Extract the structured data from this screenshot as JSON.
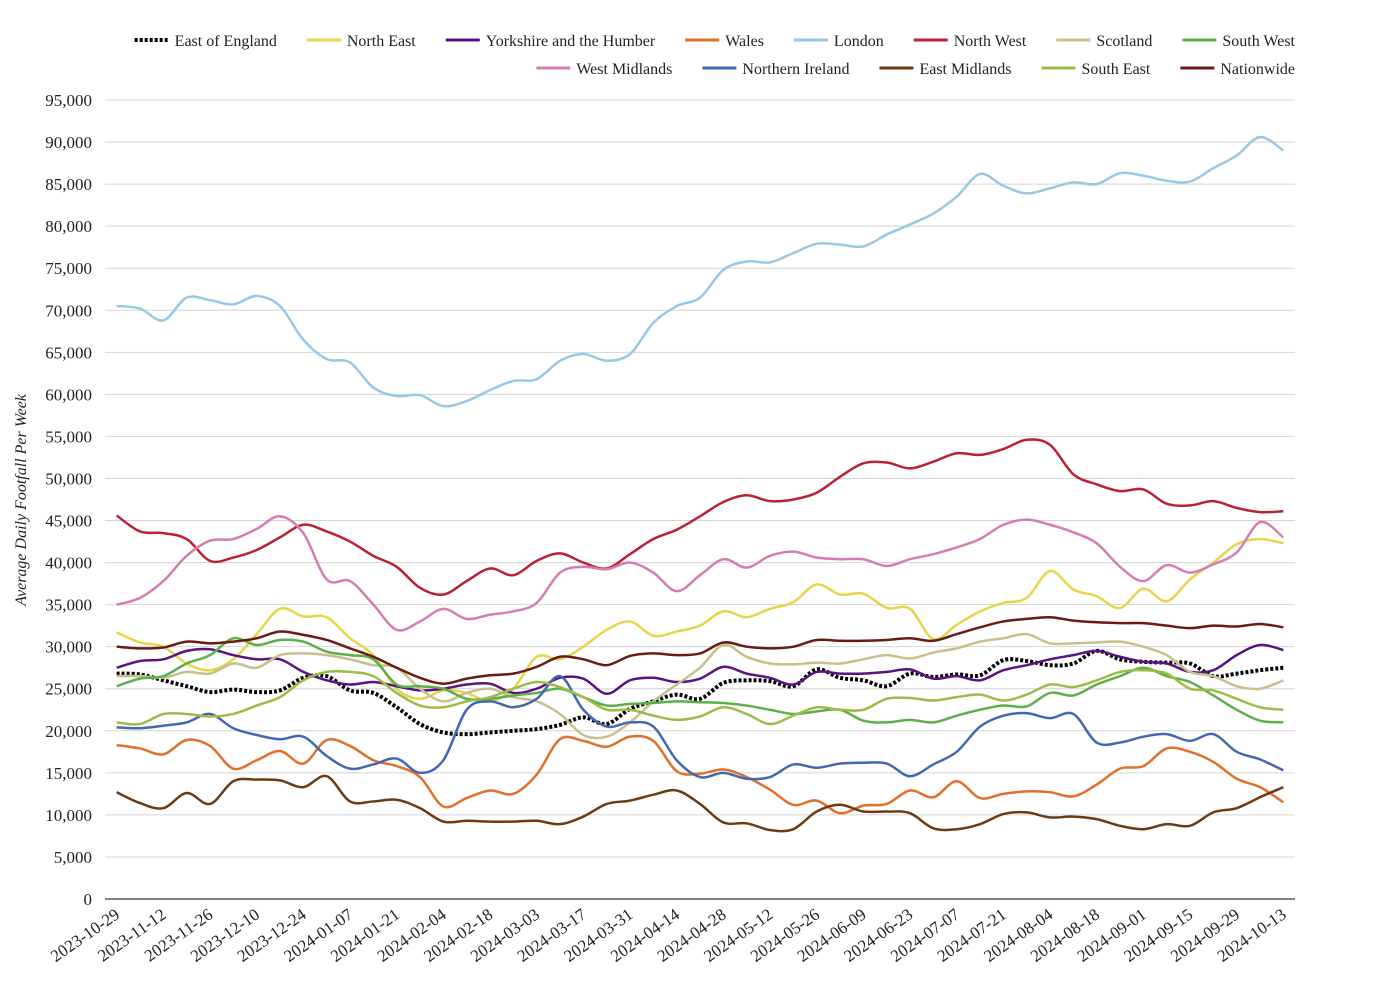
{
  "chart_data": {
    "type": "line",
    "y_label": "Average Daily Footfall Per Week",
    "categories": [
      "2023-10-29",
      null,
      "2023-11-12",
      null,
      "2023-11-26",
      null,
      "2023-12-10",
      null,
      "2023-12-24",
      null,
      "2024-01-07",
      null,
      "2024-01-21",
      null,
      "2024-02-04",
      null,
      "2024-02-18",
      null,
      "2024-03-03",
      null,
      "2024-03-17",
      null,
      "2024-03-31",
      null,
      "2024-04-14",
      null,
      "2024-04-28",
      null,
      "2024-05-12",
      null,
      "2024-05-26",
      null,
      "2024-06-09",
      null,
      "2024-06-23",
      null,
      "2024-07-07",
      null,
      "2024-07-21",
      null,
      "2024-08-04",
      null,
      "2024-08-18",
      null,
      "2024-09-01",
      null,
      "2024-09-15",
      null,
      "2024-09-29",
      null,
      "2024-10-13"
    ],
    "ylim": [
      0,
      95000
    ],
    "yticks": [
      0,
      {
        "value": 5000,
        "label": "5,000"
      },
      {
        "value": 10000,
        "label": "10,000"
      },
      {
        "value": 15000,
        "label": "15,000"
      },
      {
        "value": 20000,
        "label": "20,000"
      },
      {
        "value": 25000,
        "label": "25,000"
      },
      {
        "value": 30000,
        "label": "30,000"
      },
      {
        "value": 35000,
        "label": "35,000"
      },
      {
        "value": 40000,
        "label": "40,000"
      },
      {
        "value": 45000,
        "label": "45,000"
      },
      {
        "value": 50000,
        "label": "50,000"
      },
      {
        "value": 55000,
        "label": "55,000"
      },
      {
        "value": 60000,
        "label": "60,000"
      },
      {
        "value": 65000,
        "label": "65,000"
      },
      {
        "value": 70000,
        "label": "70,000"
      },
      {
        "value": 75000,
        "label": "75,000"
      },
      {
        "value": 80000,
        "label": "80,000"
      },
      {
        "value": 85000,
        "label": "85,000"
      },
      {
        "value": 90000,
        "label": "90,000"
      },
      {
        "value": 95000,
        "label": "95,000"
      }
    ],
    "grid": true,
    "legend": "top-right",
    "series": [
      {
        "name": "East of England",
        "color": "#000000",
        "line_style": "dotted",
        "values": [
          26800,
          26700,
          26000,
          25300,
          24600,
          24900,
          24600,
          24800,
          26300,
          26500,
          24800,
          24500,
          22800,
          20800,
          19800,
          19600,
          19800,
          20000,
          20200,
          20700,
          21600,
          20800,
          22600,
          23500,
          24300,
          23800,
          25700,
          26000,
          25900,
          25300,
          27300,
          26300,
          26000,
          25300,
          26800,
          26400,
          26700,
          26600,
          28400,
          28300,
          27800,
          28000,
          29500,
          28500,
          28200,
          28100,
          28000,
          26500,
          26800,
          27200,
          27500
        ]
      },
      {
        "name": "North East",
        "color": "#e8d44a",
        "values": [
          31700,
          30500,
          30000,
          28000,
          27200,
          28500,
          31500,
          34500,
          33600,
          33500,
          31000,
          29000,
          25000,
          23800,
          24800,
          24500,
          23500,
          25000,
          28800,
          28500,
          30000,
          32000,
          33000,
          31300,
          31800,
          32500,
          34200,
          33500,
          34500,
          35300,
          37400,
          36200,
          36300,
          34600,
          34500,
          30900,
          32600,
          34200,
          35200,
          35800,
          39000,
          36800,
          36000,
          34600,
          36900,
          35400,
          38000,
          40000,
          42200,
          42800,
          42300
        ]
      },
      {
        "name": "Yorkshire and the Humber",
        "color": "#5b1380",
        "values": [
          27500,
          28300,
          28500,
          29500,
          29700,
          29000,
          28500,
          28500,
          27000,
          26000,
          25500,
          25800,
          25300,
          24800,
          25000,
          25500,
          25600,
          24500,
          25000,
          26300,
          26200,
          24400,
          26000,
          26300,
          25800,
          26200,
          27600,
          26800,
          26300,
          25500,
          27000,
          26800,
          26800,
          27000,
          27300,
          26200,
          26500,
          26000,
          27200,
          27800,
          28500,
          29000,
          29500,
          28800,
          28200,
          28000,
          27000,
          27200,
          29000,
          30200,
          29600
        ]
      },
      {
        "name": "Wales",
        "color": "#e0702c",
        "values": [
          18300,
          17900,
          17200,
          18900,
          18200,
          15500,
          16500,
          17600,
          16100,
          18900,
          18200,
          16500,
          15800,
          14500,
          11000,
          12000,
          12900,
          12500,
          14800,
          19000,
          18800,
          18100,
          19300,
          18800,
          15200,
          14900,
          15400,
          14500,
          13000,
          11200,
          11700,
          10200,
          11100,
          11300,
          12900,
          12100,
          14000,
          12000,
          12500,
          12800,
          12700,
          12200,
          13600,
          15500,
          15800,
          17900,
          17500,
          16300,
          14300,
          13300,
          11500
        ]
      },
      {
        "name": "London",
        "color": "#98c8e4",
        "values": [
          70500,
          70200,
          68800,
          71500,
          71200,
          70700,
          71700,
          70500,
          66500,
          64200,
          63800,
          60800,
          59800,
          59900,
          58600,
          59200,
          60500,
          61600,
          61800,
          64000,
          64800,
          64000,
          64800,
          68500,
          70500,
          71500,
          74800,
          75800,
          75700,
          76800,
          77900,
          77800,
          77600,
          79000,
          80200,
          81500,
          83500,
          86200,
          84800,
          83900,
          84500,
          85200,
          85000,
          86300,
          86000,
          85400,
          85300,
          86900,
          88400,
          90600,
          89000
        ]
      },
      {
        "name": "North West",
        "color": "#b82234",
        "values": [
          45600,
          43700,
          43500,
          42800,
          40200,
          40600,
          41500,
          43000,
          44500,
          43700,
          42500,
          40800,
          39500,
          37000,
          36200,
          37800,
          39300,
          38500,
          40200,
          41100,
          40000,
          39300,
          41000,
          42800,
          43900,
          45500,
          47200,
          48000,
          47300,
          47500,
          48300,
          50200,
          51800,
          51900,
          51200,
          52000,
          53000,
          52800,
          53500,
          54600,
          54000,
          50500,
          49300,
          48500,
          48700,
          47000,
          46800,
          47300,
          46500,
          46000,
          46100
        ]
      },
      {
        "name": "Scotland",
        "color": "#c8c08a",
        "values": [
          26500,
          26500,
          26300,
          27000,
          26800,
          28000,
          27500,
          29000,
          29200,
          29000,
          28500,
          27800,
          27500,
          25000,
          23500,
          24500,
          25000,
          24000,
          23500,
          22000,
          19500,
          19300,
          21000,
          23500,
          25500,
          27500,
          30200,
          28800,
          28000,
          27900,
          28100,
          28000,
          28500,
          29000,
          28600,
          29300,
          29800,
          30600,
          31000,
          31500,
          30400,
          30400,
          30500,
          30600,
          30000,
          29000,
          27000,
          26500,
          25300,
          25000,
          26000
        ]
      },
      {
        "name": "South West",
        "color": "#5cb04a",
        "values": [
          25300,
          26200,
          26500,
          28000,
          29000,
          31000,
          30200,
          30800,
          30600,
          29400,
          29000,
          28500,
          25500,
          25300,
          25000,
          23800,
          23800,
          24200,
          24500,
          25000,
          24000,
          23000,
          23200,
          23300,
          23500,
          23400,
          23300,
          23000,
          22500,
          22000,
          22300,
          22500,
          21200,
          21000,
          21300,
          21000,
          21800,
          22500,
          23000,
          22900,
          24500,
          24200,
          25500,
          26500,
          27500,
          26500,
          25800,
          24200,
          22500,
          21200,
          21000
        ]
      },
      {
        "name": "West Midlands",
        "color": "#d47cb4",
        "values": [
          35000,
          35800,
          37800,
          40800,
          42600,
          42800,
          44000,
          45500,
          43500,
          38000,
          37800,
          35000,
          32000,
          33000,
          34500,
          33300,
          33800,
          34200,
          35200,
          38800,
          39500,
          39200,
          40000,
          38800,
          36600,
          38500,
          40400,
          39400,
          40800,
          41300,
          40600,
          40400,
          40400,
          39600,
          40400,
          41000,
          41800,
          42800,
          44500,
          45100,
          44500,
          43600,
          42300,
          39500,
          37800,
          39700,
          38800,
          39800,
          41200,
          44800,
          43000
        ]
      },
      {
        "name": "Northern Ireland",
        "color": "#4468b0",
        "values": [
          20400,
          20300,
          20600,
          21000,
          22000,
          20300,
          19500,
          19000,
          19300,
          17000,
          15500,
          16000,
          16700,
          15000,
          16500,
          22500,
          23500,
          22800,
          23800,
          26500,
          22500,
          20500,
          21000,
          20500,
          16500,
          14500,
          15000,
          14300,
          14500,
          16000,
          15600,
          16100,
          16200,
          16100,
          14600,
          16000,
          17500,
          20500,
          21800,
          22100,
          21500,
          22000,
          18600,
          18600,
          19300,
          19600,
          18800,
          19600,
          17500,
          16600,
          15300
        ]
      },
      {
        "name": "East Midlands",
        "color": "#6b3c14",
        "values": [
          12700,
          11400,
          10800,
          12600,
          11300,
          14000,
          14200,
          14100,
          13300,
          14600,
          11600,
          11600,
          11800,
          10800,
          9200,
          9300,
          9200,
          9200,
          9300,
          8900,
          9800,
          11300,
          11700,
          12400,
          12900,
          11300,
          9100,
          9000,
          8200,
          8300,
          10400,
          11200,
          10400,
          10400,
          10200,
          8400,
          8300,
          8900,
          10100,
          10300,
          9700,
          9800,
          9500,
          8700,
          8300,
          8900,
          8700,
          10300,
          10800,
          12100,
          13300
        ]
      },
      {
        "name": "South East",
        "color": "#9cbc48",
        "values": [
          21000,
          20800,
          22000,
          22000,
          21700,
          22000,
          23000,
          24000,
          26000,
          27000,
          27000,
          26500,
          24500,
          23000,
          22800,
          23500,
          24000,
          25000,
          25800,
          25200,
          24000,
          22500,
          22500,
          21800,
          21300,
          21700,
          22800,
          22000,
          20800,
          21800,
          22800,
          22500,
          22500,
          23800,
          23900,
          23600,
          24000,
          24300,
          23600,
          24300,
          25500,
          25200,
          26000,
          27000,
          27200,
          26800,
          25000,
          24800,
          23800,
          22800,
          22500
        ]
      },
      {
        "name": "Nationwide",
        "color": "#6a1c14",
        "values": [
          30000,
          29800,
          29900,
          30600,
          30400,
          30600,
          31000,
          31800,
          31400,
          30800,
          29800,
          28800,
          27500,
          26300,
          25600,
          26200,
          26600,
          26800,
          27600,
          28800,
          28500,
          27800,
          28900,
          29200,
          29000,
          29200,
          30500,
          30000,
          29800,
          30000,
          30800,
          30700,
          30700,
          30800,
          31000,
          30700,
          31500,
          32300,
          33000,
          33300,
          33500,
          33100,
          32900,
          32800,
          32800,
          32500,
          32200,
          32500,
          32400,
          32700,
          32300
        ]
      }
    ]
  }
}
